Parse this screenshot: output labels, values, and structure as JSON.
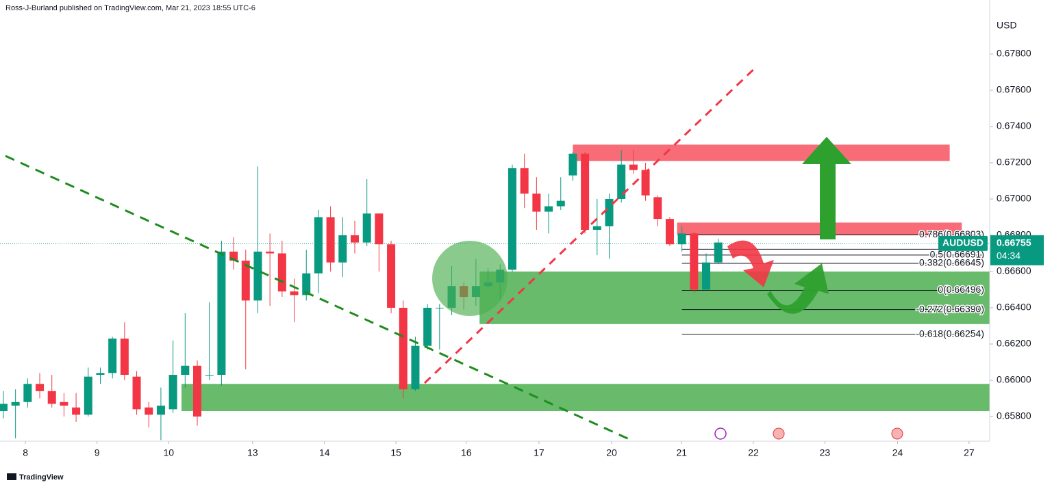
{
  "header": "Ross-J-Burland published on TradingView.com, Mar 21, 2023 18:55 UTC-6",
  "footer": "TradingView",
  "chart_data": {
    "type": "candlestick",
    "currency": "USD",
    "symbol": "AUDUSD",
    "last_price": {
      "value": 0.66755,
      "label": "0.66755"
    },
    "countdown": "04:34",
    "up_color": "#089981",
    "down_color": "#f23645",
    "x": [
      0,
      1,
      2,
      3,
      4,
      5,
      6,
      7,
      8,
      9,
      10,
      11,
      12,
      13,
      14,
      15,
      16,
      17,
      18,
      19,
      20,
      21,
      22,
      23,
      24,
      25,
      26,
      27,
      28,
      29,
      30,
      31,
      32,
      33,
      34,
      35,
      36,
      37,
      38,
      39,
      40,
      41,
      42,
      43,
      44,
      45,
      46,
      47,
      48,
      49,
      50,
      51,
      52,
      53,
      54,
      55,
      56,
      57,
      58,
      59
    ],
    "open": [
      0.6583,
      0.6586,
      0.6588,
      0.6598,
      0.6594,
      0.6588,
      0.6585,
      0.6581,
      0.6603,
      0.6604,
      0.6623,
      0.6602,
      0.6585,
      0.6581,
      0.6584,
      0.6603,
      0.6608,
      0.6603,
      0.6603,
      0.6671,
      0.6666,
      0.6644,
      0.6671,
      0.667,
      0.6649,
      0.6647,
      0.6659,
      0.669,
      0.6665,
      0.668,
      0.6676,
      0.6692,
      0.6675,
      0.664,
      0.6595,
      0.6619,
      0.664,
      0.664,
      0.6652,
      0.6646,
      0.6652,
      0.6654,
      0.6661,
      0.6717,
      0.6703,
      0.6693,
      0.6696,
      0.6713,
      0.6725,
      0.6683,
      0.6685,
      0.67,
      0.6719,
      0.6716,
      0.6701,
      0.6689,
      0.6675,
      0.6681,
      0.665,
      0.6665
    ],
    "high": [
      0.6594,
      0.6595,
      0.6601,
      0.6604,
      0.6603,
      0.6593,
      0.6593,
      0.6607,
      0.6607,
      0.6624,
      0.6632,
      0.6605,
      0.6588,
      0.6596,
      0.6622,
      0.6637,
      0.6611,
      0.6643,
      0.6677,
      0.6679,
      0.6672,
      0.6718,
      0.6681,
      0.6677,
      0.6656,
      0.6672,
      0.6694,
      0.6696,
      0.669,
      0.6688,
      0.6711,
      0.6692,
      0.6677,
      0.6644,
      0.6624,
      0.6642,
      0.6642,
      0.6663,
      0.6654,
      0.6667,
      0.6662,
      0.6664,
      0.6719,
      0.6725,
      0.6712,
      0.6703,
      0.6712,
      0.6726,
      0.6726,
      0.67,
      0.6703,
      0.6727,
      0.6727,
      0.672,
      0.6702,
      0.669,
      0.6685,
      0.6682,
      0.667,
      0.6678
    ],
    "low": [
      0.6579,
      0.6568,
      0.6585,
      0.659,
      0.6585,
      0.658,
      0.6577,
      0.658,
      0.6598,
      0.6601,
      0.66,
      0.6581,
      0.6574,
      0.6567,
      0.6582,
      0.6596,
      0.6575,
      0.66,
      0.6597,
      0.6661,
      0.6606,
      0.6637,
      0.6641,
      0.6646,
      0.6632,
      0.6644,
      0.6648,
      0.666,
      0.6657,
      0.667,
      0.6674,
      0.666,
      0.6637,
      0.659,
      0.6594,
      0.6617,
      0.6617,
      0.6636,
      0.6639,
      0.6641,
      0.665,
      0.6644,
      0.666,
      0.6695,
      0.6683,
      0.6681,
      0.6694,
      0.671,
      0.6681,
      0.6669,
      0.6667,
      0.6698,
      0.6714,
      0.6699,
      0.6685,
      0.6674,
      0.6671,
      0.6648,
      0.665,
      0.6664
    ],
    "close": [
      0.6587,
      0.6588,
      0.6598,
      0.6594,
      0.6587,
      0.6586,
      0.6581,
      0.6602,
      0.6604,
      0.6623,
      0.6603,
      0.6584,
      0.6581,
      0.6586,
      0.6603,
      0.6608,
      0.658,
      0.6603,
      0.6671,
      0.6666,
      0.6644,
      0.6671,
      0.667,
      0.6649,
      0.6647,
      0.6659,
      0.669,
      0.6665,
      0.668,
      0.6676,
      0.6692,
      0.6675,
      0.664,
      0.6595,
      0.6619,
      0.664,
      0.664,
      0.6652,
      0.6646,
      0.6652,
      0.6654,
      0.6661,
      0.6717,
      0.6703,
      0.6693,
      0.6696,
      0.6699,
      0.6725,
      0.6683,
      0.6685,
      0.67,
      0.6719,
      0.6716,
      0.6702,
      0.6689,
      0.6675,
      0.6681,
      0.665,
      0.6665,
      0.6676
    ],
    "xlim": [
      -0.28,
      81.4
    ],
    "xticks": [
      {
        "value": 1.82,
        "label": "8"
      },
      {
        "value": 7.73,
        "label": "9"
      },
      {
        "value": 13.64,
        "label": "10"
      },
      {
        "value": 20.57,
        "label": "13"
      },
      {
        "value": 26.5,
        "label": "14"
      },
      {
        "value": 32.4,
        "label": "15"
      },
      {
        "value": 38.2,
        "label": "16"
      },
      {
        "value": 44.2,
        "label": "17"
      },
      {
        "value": 50.2,
        "label": "20"
      },
      {
        "value": 55.98,
        "label": "21"
      },
      {
        "value": 61.9,
        "label": "22"
      },
      {
        "value": 67.8,
        "label": "23"
      },
      {
        "value": 73.8,
        "label": "24"
      },
      {
        "value": 79.7,
        "label": "27"
      }
    ],
    "ylim": [
      0.65664,
      0.68098
    ],
    "yticks": [
      {
        "value": 0.658,
        "label": "0.65800"
      },
      {
        "value": 0.66,
        "label": "0.66000"
      },
      {
        "value": 0.662,
        "label": "0.66200"
      },
      {
        "value": 0.664,
        "label": "0.66400"
      },
      {
        "value": 0.666,
        "label": "0.66600"
      },
      {
        "value": 0.668,
        "label": "0.66800"
      },
      {
        "value": 0.67,
        "label": "0.67000"
      },
      {
        "value": 0.672,
        "label": "0.67200"
      },
      {
        "value": 0.674,
        "label": "0.67400"
      },
      {
        "value": 0.676,
        "label": "0.67600"
      },
      {
        "value": 0.678,
        "label": "0.67800"
      }
    ],
    "fib_levels": [
      {
        "label": "0.786(0.66803)",
        "price": 0.66803
      },
      {
        "label": "0.618(",
        "price": 0.66723
      },
      {
        "label": "0.5(0.66691)",
        "price": 0.66691
      },
      {
        "label": "0.382(0.66645)",
        "price": 0.66645
      },
      {
        "label": "0(0.66496)",
        "price": 0.66496
      },
      {
        "label": "-0.272(0.66390)",
        "price": 0.6639
      },
      {
        "label": "-0.618(0.66254)",
        "price": 0.66254
      }
    ],
    "zones": [
      {
        "color": "#f7525f",
        "x": [
          47,
          78.1
        ],
        "price": [
          0.6721,
          0.673
        ]
      },
      {
        "color": "#f7525f",
        "x": [
          55.6,
          79.1
        ],
        "price": [
          0.668,
          0.6687
        ]
      },
      {
        "color": "#4caf50",
        "x": [
          39.3,
          81.4
        ],
        "price": [
          0.6631,
          0.666
        ]
      },
      {
        "color": "#4caf50",
        "x": [
          14.7,
          81.4
        ],
        "price": [
          0.6583,
          0.6598
        ]
      }
    ]
  }
}
